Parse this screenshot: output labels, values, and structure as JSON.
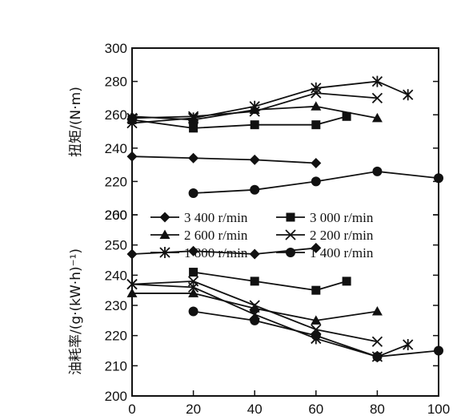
{
  "chart_data": [
    {
      "type": "line",
      "ylabel": "扭矩/(N·m)",
      "xlim": [
        0,
        100
      ],
      "ylim": [
        200,
        300
      ],
      "yticks": [
        200,
        220,
        240,
        260,
        280,
        300
      ],
      "series": [
        {
          "name": "3 400 r/min",
          "marker": "diamond",
          "x": [
            0,
            20,
            40,
            60
          ],
          "y": [
            235,
            234,
            233,
            231
          ]
        },
        {
          "name": "3 000 r/min",
          "marker": "square",
          "x": [
            0,
            20,
            40,
            60,
            70
          ],
          "y": [
            257,
            252,
            254,
            254,
            259
          ]
        },
        {
          "name": "2 600 r/min",
          "marker": "triangle",
          "x": [
            0,
            20,
            40,
            60,
            80
          ],
          "y": [
            259,
            257,
            263,
            265,
            258
          ]
        },
        {
          "name": "2 200 r/min",
          "marker": "x",
          "x": [
            0,
            20,
            40,
            60,
            80
          ],
          "y": [
            258,
            259,
            262,
            273,
            270
          ]
        },
        {
          "name": "1 800 r/min",
          "marker": "star",
          "x": [
            0,
            20,
            40,
            60,
            80,
            90
          ],
          "y": [
            255,
            258,
            265,
            276,
            280,
            272
          ]
        },
        {
          "name": "1 400 r/min",
          "marker": "circle",
          "x": [
            20,
            40,
            60,
            80,
            100
          ],
          "y": [
            213,
            215,
            220,
            226,
            222
          ]
        }
      ]
    },
    {
      "type": "line",
      "ylabel": "油耗率/(g·(kW·h)⁻¹)",
      "xlim": [
        0,
        100
      ],
      "ylim": [
        200,
        260
      ],
      "yticks": [
        200,
        210,
        220,
        230,
        240,
        250,
        260
      ],
      "xticks": [
        0,
        20,
        40,
        60,
        80,
        100
      ],
      "series": [
        {
          "name": "3 400 r/min",
          "marker": "diamond",
          "x": [
            0,
            20,
            40,
            60
          ],
          "y": [
            247,
            248,
            247,
            249
          ]
        },
        {
          "name": "3 000 r/min",
          "marker": "square",
          "x": [
            20,
            40,
            60,
            70
          ],
          "y": [
            241,
            238,
            235,
            238
          ]
        },
        {
          "name": "2 600 r/min",
          "marker": "triangle",
          "x": [
            0,
            20,
            40,
            60,
            80
          ],
          "y": [
            234,
            234,
            229,
            225,
            228
          ]
        },
        {
          "name": "2 200 r/min",
          "marker": "x",
          "x": [
            0,
            20,
            40,
            60,
            80
          ],
          "y": [
            237,
            238,
            230,
            222,
            218
          ]
        },
        {
          "name": "1 800 r/min",
          "marker": "star",
          "x": [
            0,
            20,
            40,
            60,
            80,
            90
          ],
          "y": [
            237,
            236,
            227,
            219,
            213,
            217
          ]
        },
        {
          "name": "1 400 r/min",
          "marker": "circle",
          "x": [
            20,
            40,
            60,
            80,
            100
          ],
          "y": [
            228,
            225,
            220,
            213,
            215
          ]
        }
      ]
    }
  ],
  "legend_location": "between-panels"
}
